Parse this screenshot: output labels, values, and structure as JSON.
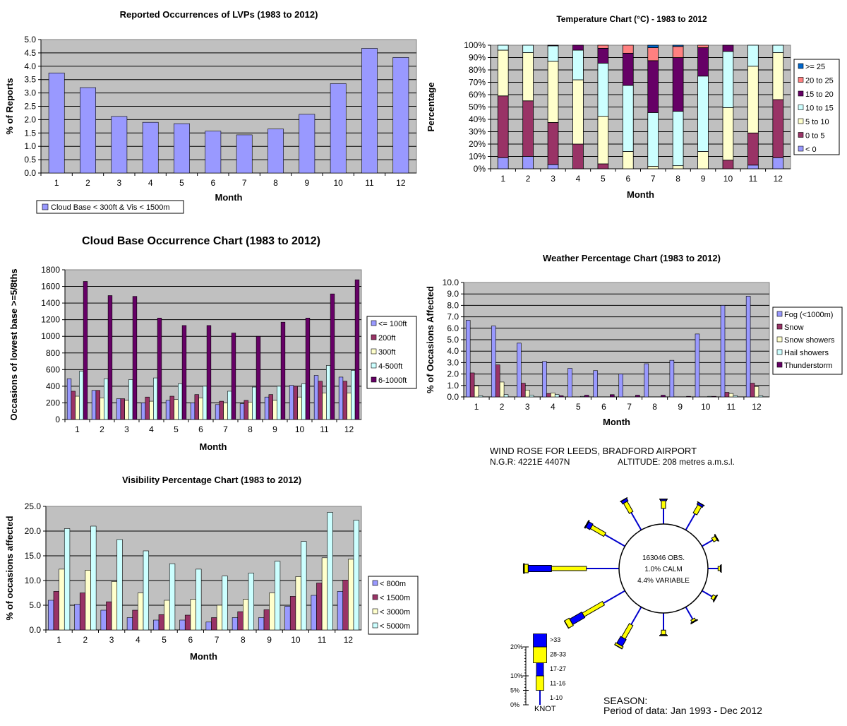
{
  "chart_data": [
    {
      "type": "bar",
      "title": "Reported Occurrences of LVPs (1983 to 2012)",
      "xlabel": "Month",
      "ylabel": "% of Reports",
      "ylim": [
        0,
        5.0
      ],
      "yticks": [
        "0.0",
        "0.5",
        "1.0",
        "1.5",
        "2.0",
        "2.5",
        "3.0",
        "3.5",
        "4.0",
        "4.5",
        "5.0"
      ],
      "categories": [
        "1",
        "2",
        "3",
        "4",
        "5",
        "6",
        "7",
        "8",
        "9",
        "10",
        "11",
        "12"
      ],
      "series": [
        {
          "name": "Cloud Base < 300ft & Vis < 1500m",
          "color": "#9999ff",
          "values": [
            3.75,
            3.2,
            2.12,
            1.9,
            1.85,
            1.57,
            1.43,
            1.65,
            2.2,
            3.35,
            4.67,
            4.33
          ]
        }
      ],
      "legend": "bottom-left",
      "grid": true
    },
    {
      "type": "bar",
      "stacked": true,
      "title": "Temperature Chart (°C) - 1983 to 2012",
      "xlabel": "Month",
      "ylabel": "Percentage",
      "ylim": [
        0,
        100
      ],
      "yticks": [
        "0%",
        "10%",
        "20%",
        "30%",
        "40%",
        "50%",
        "60%",
        "70%",
        "80%",
        "90%",
        "100%"
      ],
      "categories": [
        "1",
        "2",
        "3",
        "4",
        "5",
        "6",
        "7",
        "8",
        "9",
        "10",
        "11",
        "12"
      ],
      "series": [
        {
          "name": "< 0",
          "color": "#9999ff",
          "values": [
            9,
            10,
            3.5,
            0,
            0,
            0,
            0,
            0,
            0,
            0,
            3,
            9
          ]
        },
        {
          "name": "0 to 5",
          "color": "#993366",
          "values": [
            50,
            45,
            34,
            20,
            4,
            0,
            0,
            0,
            0,
            7,
            26,
            47
          ]
        },
        {
          "name": "5 to 10",
          "color": "#ffffcc",
          "values": [
            37,
            39,
            49.5,
            52,
            38.5,
            14,
            2,
            2.5,
            14,
            42.5,
            54,
            38
          ]
        },
        {
          "name": "10 to 15",
          "color": "#ccffff",
          "values": [
            4,
            6,
            12.5,
            24,
            43,
            53.5,
            43.5,
            44,
            61,
            45.5,
            17,
            6
          ]
        },
        {
          "name": "15 to 20",
          "color": "#660066",
          "values": [
            0,
            0,
            0.5,
            4,
            12,
            26,
            42,
            43.5,
            23,
            5,
            0,
            0
          ]
        },
        {
          "name": "20 to 25",
          "color": "#ff8080",
          "values": [
            0,
            0,
            0,
            0,
            2.5,
            6.5,
            10.5,
            9,
            2,
            0,
            0,
            0
          ]
        },
        {
          "name": ">= 25",
          "color": "#0066cc",
          "values": [
            0,
            0,
            0,
            0,
            0,
            0,
            2,
            1,
            0,
            0,
            0,
            0
          ]
        }
      ],
      "legend": "right",
      "grid": true
    },
    {
      "type": "bar",
      "title": "Cloud Base Occurrence Chart (1983 to 2012)",
      "xlabel": "Month",
      "ylabel": "Occasions of lowest base >=5/8ths",
      "ylim": [
        0,
        1800
      ],
      "yticks": [
        "0",
        "200",
        "400",
        "600",
        "800",
        "1000",
        "1200",
        "1400",
        "1600",
        "1800"
      ],
      "categories": [
        "1",
        "2",
        "3",
        "4",
        "5",
        "6",
        "7",
        "8",
        "9",
        "10",
        "11",
        "12"
      ],
      "series": [
        {
          "name": "<= 100ft",
          "color": "#9999ff",
          "values": [
            490,
            350,
            250,
            200,
            230,
            200,
            180,
            190,
            270,
            410,
            530,
            510
          ]
        },
        {
          "name": "200ft",
          "color": "#993366",
          "values": [
            340,
            350,
            250,
            270,
            280,
            300,
            220,
            230,
            300,
            400,
            460,
            460
          ]
        },
        {
          "name": "300ft",
          "color": "#ffffcc",
          "values": [
            280,
            260,
            230,
            220,
            240,
            260,
            200,
            210,
            230,
            270,
            320,
            320
          ]
        },
        {
          "name": "4-500ft",
          "color": "#ccffff",
          "values": [
            580,
            490,
            480,
            500,
            430,
            400,
            340,
            390,
            400,
            430,
            650,
            590
          ]
        },
        {
          "name": "6-1000ft",
          "color": "#660066",
          "values": [
            1660,
            1490,
            1480,
            1220,
            1130,
            1130,
            1040,
            1000,
            1170,
            1220,
            1510,
            1680
          ]
        }
      ],
      "legend": "right",
      "grid": true
    },
    {
      "type": "bar",
      "title": "Weather Percentage Chart (1983 to 2012)",
      "xlabel": "Month",
      "ylabel": "% of Occasions Affected",
      "ylim": [
        0,
        10.0
      ],
      "yticks": [
        "0.0",
        "1.0",
        "2.0",
        "3.0",
        "4.0",
        "5.0",
        "6.0",
        "7.0",
        "8.0",
        "9.0",
        "10.0"
      ],
      "categories": [
        "1",
        "2",
        "3",
        "4",
        "5",
        "6",
        "7",
        "8",
        "9",
        "10",
        "11",
        "12"
      ],
      "series": [
        {
          "name": "Fog (<1000m)",
          "color": "#9999ff",
          "values": [
            6.7,
            6.2,
            4.7,
            3.1,
            2.5,
            2.3,
            2.0,
            2.9,
            3.2,
            5.5,
            8.0,
            8.8
          ]
        },
        {
          "name": "Snow",
          "color": "#993366",
          "values": [
            2.1,
            2.8,
            1.2,
            0.3,
            0.0,
            0.0,
            0.0,
            0.0,
            0.0,
            0.0,
            0.4,
            1.2
          ]
        },
        {
          "name": "Snow showers",
          "color": "#ffffcc",
          "values": [
            0.95,
            1.3,
            0.6,
            0.35,
            0.0,
            0.0,
            0.0,
            0.0,
            0.0,
            0.0,
            0.3,
            0.9
          ]
        },
        {
          "name": "Hail showers",
          "color": "#ccffff",
          "values": [
            0.1,
            0.2,
            0.15,
            0.2,
            0.05,
            0.0,
            0.0,
            0.0,
            0.0,
            0.05,
            0.1,
            0.1
          ]
        },
        {
          "name": "Thunderstorm",
          "color": "#660066",
          "values": [
            0.0,
            0.0,
            0.0,
            0.1,
            0.15,
            0.2,
            0.15,
            0.15,
            0.05,
            0.05,
            0.0,
            0.0
          ]
        }
      ],
      "legend": "right",
      "grid": true
    },
    {
      "type": "bar",
      "title": "Visibility Percentage Chart (1983 to 2012)",
      "xlabel": "Month",
      "ylabel": "% of occasions affected",
      "ylim": [
        0,
        25.0
      ],
      "yticks": [
        "0.0",
        "5.0",
        "10.0",
        "15.0",
        "20.0",
        "25.0"
      ],
      "categories": [
        "1",
        "2",
        "3",
        "4",
        "5",
        "6",
        "7",
        "8",
        "9",
        "10",
        "11",
        "12"
      ],
      "series": [
        {
          "name": "< 800m",
          "color": "#9999ff",
          "values": [
            6.0,
            5.2,
            4.0,
            2.5,
            2.0,
            2.0,
            1.6,
            2.5,
            2.5,
            4.8,
            7.0,
            7.8
          ]
        },
        {
          "name": "< 1500m",
          "color": "#993366",
          "values": [
            7.8,
            7.5,
            5.7,
            4.0,
            3.1,
            3.0,
            2.5,
            3.7,
            4.1,
            6.8,
            9.5,
            10.1
          ]
        },
        {
          "name": "< 3000m",
          "color": "#ffffcc",
          "values": [
            12.3,
            12.1,
            9.8,
            7.5,
            6.0,
            6.2,
            5.0,
            6.2,
            7.5,
            10.8,
            14.6,
            14.3
          ]
        },
        {
          "name": "< 5000m",
          "color": "#ccffff",
          "values": [
            20.5,
            21.0,
            18.3,
            16.0,
            13.4,
            12.3,
            10.9,
            11.5,
            13.9,
            17.9,
            23.8,
            22.2
          ]
        }
      ],
      "legend": "right",
      "grid": true
    }
  ],
  "wind_rose": {
    "title": "WIND ROSE FOR LEEDS, BRADFORD AIRPORT",
    "ngr": "N.G.R: 4221E 4407N",
    "altitude": "ALTITUDE:  208 metres a.m.s.l.",
    "center_lines": [
      "163046 OBS.",
      "1.0% CALM",
      "4.4% VARIABLE"
    ],
    "colors": {
      "line": "#0000cc",
      "yellow": "#ffff00",
      "blue": "#0000ff"
    },
    "directions": [
      {
        "deg": 0,
        "pct_1_10": 2.0,
        "pct_11_16": 1.0,
        "pct_17_27": 0.2,
        "pct_28_33": 0.0,
        "pct_gt33": 0.0
      },
      {
        "deg": 30,
        "pct_1_10": 2.4,
        "pct_11_16": 1.2,
        "pct_17_27": 0.3,
        "pct_28_33": 0.0,
        "pct_gt33": 0.0
      },
      {
        "deg": 60,
        "pct_1_10": 1.6,
        "pct_11_16": 0.5,
        "pct_17_27": 0.1,
        "pct_28_33": 0.0,
        "pct_gt33": 0.0
      },
      {
        "deg": 90,
        "pct_1_10": 1.3,
        "pct_11_16": 0.3,
        "pct_17_27": 0.1,
        "pct_28_33": 0.0,
        "pct_gt33": 0.0
      },
      {
        "deg": 120,
        "pct_1_10": 1.5,
        "pct_11_16": 0.4,
        "pct_17_27": 0.1,
        "pct_28_33": 0.0,
        "pct_gt33": 0.0
      },
      {
        "deg": 150,
        "pct_1_10": 1.8,
        "pct_11_16": 0.3,
        "pct_17_27": 0.1,
        "pct_28_33": 0.0,
        "pct_gt33": 0.0
      },
      {
        "deg": 180,
        "pct_1_10": 2.2,
        "pct_11_16": 0.6,
        "pct_17_27": 0.1,
        "pct_28_33": 0.0,
        "pct_gt33": 0.0
      },
      {
        "deg": 210,
        "pct_1_10": 2.6,
        "pct_11_16": 2.0,
        "pct_17_27": 1.0,
        "pct_28_33": 0.3,
        "pct_gt33": 0.0
      },
      {
        "deg": 240,
        "pct_1_10": 3.2,
        "pct_11_16": 3.0,
        "pct_17_27": 1.8,
        "pct_28_33": 0.7,
        "pct_gt33": 0.0
      },
      {
        "deg": 270,
        "pct_1_10": 4.2,
        "pct_11_16": 4.5,
        "pct_17_27": 3.0,
        "pct_28_33": 0.5,
        "pct_gt33": 0.1
      },
      {
        "deg": 300,
        "pct_1_10": 3.0,
        "pct_11_16": 2.0,
        "pct_17_27": 0.6,
        "pct_28_33": 0.1,
        "pct_gt33": 0.0
      },
      {
        "deg": 330,
        "pct_1_10": 2.6,
        "pct_11_16": 1.5,
        "pct_17_27": 0.4,
        "pct_28_33": 0.0,
        "pct_gt33": 0.0
      }
    ],
    "key": {
      "scale_labels": [
        "20%",
        "10%",
        "5%",
        "0%"
      ],
      "speed_labels": [
        ">33",
        "28-33",
        "17-27",
        "11-16",
        "1-10"
      ],
      "unit": "KNOT"
    },
    "season_label": "SEASON:",
    "period": "Period of data: Jan 1993 - Dec 2012"
  }
}
